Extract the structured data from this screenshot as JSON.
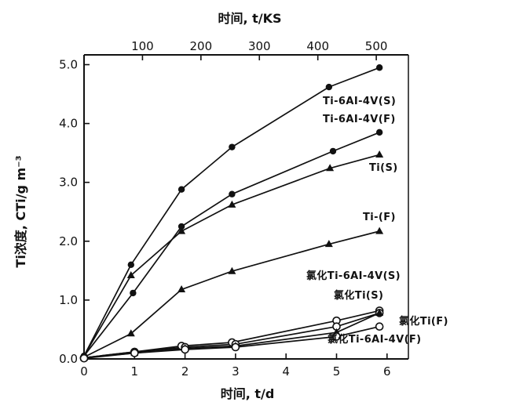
{
  "chart_data": {
    "type": "line",
    "title": "",
    "xlabel": "时间, t/d",
    "ylabel": "Ti浓度, CTi/g m⁻³",
    "top_xlabel": "时间, t/KS",
    "xlim": [
      0,
      6.3
    ],
    "ylim": [
      0,
      5.0
    ],
    "x_ticks": [
      "0",
      "1",
      "2",
      "3",
      "4",
      "5",
      "6"
    ],
    "x_tick_values": [
      0,
      1,
      2,
      3,
      4,
      5,
      6
    ],
    "y_ticks": [
      "0.0",
      "1.0",
      "2.0",
      "3.0",
      "4.0",
      "5.0"
    ],
    "y_tick_values": [
      0,
      1,
      2,
      3,
      4,
      5
    ],
    "top_ticks": [
      "100",
      "200",
      "300",
      "400",
      "500"
    ],
    "top_tick_values_ks": [
      100,
      200,
      300,
      400,
      500
    ],
    "grid": false,
    "legend": "inline labels",
    "series": [
      {
        "name": "Ti-6AI-4V(S)",
        "marker": "dot",
        "x": [
          0,
          0.93,
          1.93,
          2.93,
          4.85,
          5.85
        ],
        "y": [
          0.05,
          1.6,
          2.88,
          3.6,
          4.62,
          4.95
        ]
      },
      {
        "name": "Ti-6AI-4V(F)",
        "marker": "dot",
        "x": [
          0,
          0.97,
          1.93,
          2.93,
          4.93,
          5.85
        ],
        "y": [
          0.05,
          1.12,
          2.25,
          2.8,
          3.53,
          3.85
        ]
      },
      {
        "name": "Ti(S)",
        "marker": "triangle",
        "x": [
          0,
          0.93,
          1.93,
          2.93,
          4.87,
          5.85
        ],
        "y": [
          0.05,
          1.42,
          2.17,
          2.62,
          3.24,
          3.47
        ]
      },
      {
        "name": "Ti-(F)",
        "marker": "triangle",
        "x": [
          0,
          0.93,
          1.93,
          2.93,
          4.85,
          5.85
        ],
        "y": [
          0.03,
          0.43,
          1.18,
          1.49,
          1.95,
          2.17
        ]
      },
      {
        "name": "氯化Ti-6AI-4V(S)",
        "marker": "circle",
        "x": [
          0,
          1.0,
          1.93,
          2.93,
          5.0,
          5.85
        ],
        "y": [
          0.02,
          0.12,
          0.22,
          0.28,
          0.65,
          0.82
        ]
      },
      {
        "name": "氯化Ti(S)",
        "marker": "circle",
        "x": [
          0,
          1.0,
          2.0,
          3.0,
          5.0,
          5.85
        ],
        "y": [
          0.02,
          0.12,
          0.2,
          0.25,
          0.55,
          0.78
        ]
      },
      {
        "name": "氯化Ti(F)",
        "marker": "triangle",
        "x": [
          0,
          1.0,
          2.0,
          3.0,
          5.0,
          5.85
        ],
        "y": [
          0.02,
          0.1,
          0.18,
          0.22,
          0.45,
          0.78
        ]
      },
      {
        "name": "氯化Ti-6AI-4V(F)",
        "marker": "circle",
        "x": [
          0,
          1.0,
          2.0,
          3.0,
          5.0,
          5.85
        ],
        "y": [
          0.01,
          0.1,
          0.16,
          0.2,
          0.38,
          0.55
        ]
      }
    ],
    "labels": [
      {
        "text": "Ti-6AI-4V(S)"
      },
      {
        "text": "Ti-6AI-4V(F)"
      },
      {
        "text": "Ti(S)"
      },
      {
        "text": "Ti-(F)"
      },
      {
        "text": "氯化Ti-6AI-4V(S)"
      },
      {
        "text": "氯化Ti(S)"
      },
      {
        "text": "氯化Ti(F)"
      },
      {
        "text": "氯化Ti-6AI-4V(F)"
      }
    ],
    "colors": {
      "ink": "#111111",
      "background": "#ffffff"
    }
  }
}
